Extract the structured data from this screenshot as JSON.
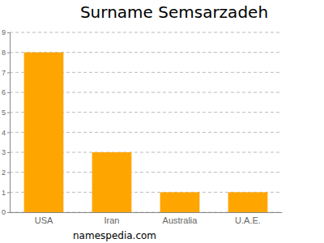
{
  "chart_data": {
    "type": "bar",
    "title": "Surname Semsarzadeh",
    "categories": [
      "USA",
      "Iran",
      "Australia",
      "U.A.E."
    ],
    "values": [
      8,
      3,
      1,
      1
    ],
    "color": "#ffa500",
    "ylim": [
      0,
      9
    ],
    "yticks": [
      0,
      1,
      2,
      3,
      4,
      5,
      6,
      7,
      8,
      9
    ],
    "grid": true,
    "annotations": [
      "namespedia.com"
    ]
  }
}
